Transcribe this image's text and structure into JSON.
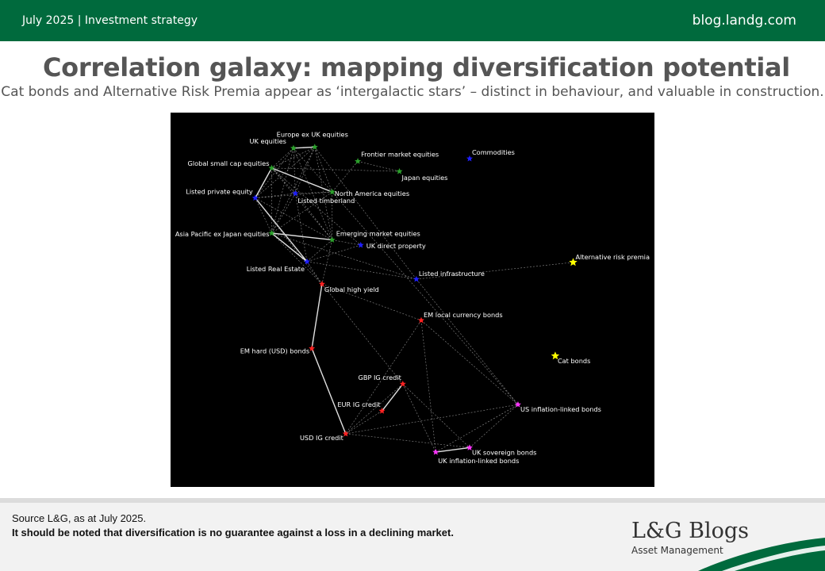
{
  "header": {
    "date_section": "July 2025 | Investment strategy",
    "site": "blog.landg.com"
  },
  "title": "Correlation galaxy: mapping diversification potential",
  "subtitle": "Cat bonds and Alternative Risk Premia appear as ‘intergalactic stars’ – distinct in behaviour, and valuable in construction.",
  "footer": {
    "source": "Source L&G, as at July 2025.",
    "disclaimer": "It should be noted that diversification is no guarantee against a loss in a declining market.",
    "logo_main": "L&G Blogs",
    "logo_sub": "Asset Management"
  },
  "colors": {
    "brand_green": "#006a3d",
    "equities": "#2ca02c",
    "real_assets": "#1f1fff",
    "credit": "#ff2222",
    "govt_bonds": "#ff33ff",
    "alternatives": "#ffff00",
    "strong_link": "#e0e0e0",
    "weak_link": "#bbbbbb"
  },
  "chart_data": {
    "type": "network",
    "title": "",
    "background": "black",
    "nodes": [
      {
        "id": "europe_ex_uk_eq",
        "label": "Europe ex UK equities",
        "group": "equities",
        "x": 0.298,
        "y": 0.092
      },
      {
        "id": "uk_eq",
        "label": "UK equities",
        "group": "equities",
        "x": 0.254,
        "y": 0.095
      },
      {
        "id": "frontier_eq",
        "label": "Frontier market equities",
        "group": "equities",
        "x": 0.387,
        "y": 0.13
      },
      {
        "id": "commodities",
        "label": "Commodities",
        "group": "real_assets",
        "x": 0.618,
        "y": 0.123
      },
      {
        "id": "global_small_cap",
        "label": "Global small cap equities",
        "group": "equities",
        "x": 0.209,
        "y": 0.148
      },
      {
        "id": "japan_eq",
        "label": "Japan equities",
        "group": "equities",
        "x": 0.473,
        "y": 0.157
      },
      {
        "id": "listed_private_eq",
        "label": "Listed private equity",
        "group": "real_assets",
        "x": 0.175,
        "y": 0.228
      },
      {
        "id": "listed_timberland",
        "label": "Listed timberland",
        "group": "real_assets",
        "x": 0.258,
        "y": 0.216
      },
      {
        "id": "north_america_eq",
        "label": "North America equities",
        "group": "equities",
        "x": 0.334,
        "y": 0.212
      },
      {
        "id": "apac_ex_japan_eq",
        "label": "Asia Pacific ex Japan equities",
        "group": "equities",
        "x": 0.209,
        "y": 0.322
      },
      {
        "id": "em_eq",
        "label": "Emerging market equities",
        "group": "equities",
        "x": 0.334,
        "y": 0.34
      },
      {
        "id": "uk_direct_property",
        "label": "UK direct property",
        "group": "real_assets",
        "x": 0.393,
        "y": 0.354
      },
      {
        "id": "listed_real_estate",
        "label": "Listed Real Estate",
        "group": "real_assets",
        "x": 0.282,
        "y": 0.398
      },
      {
        "id": "alt_risk_premia",
        "label": "Alternative risk premia",
        "group": "alternatives",
        "x": 0.832,
        "y": 0.4
      },
      {
        "id": "listed_infra",
        "label": "Listed infrastructure",
        "group": "real_assets",
        "x": 0.508,
        "y": 0.445
      },
      {
        "id": "global_hy",
        "label": "Global high yield",
        "group": "credit",
        "x": 0.313,
        "y": 0.458
      },
      {
        "id": "em_local_bonds",
        "label": "EM local currency bonds",
        "group": "credit",
        "x": 0.518,
        "y": 0.555
      },
      {
        "id": "em_hard_bonds",
        "label": "EM hard (USD) bonds",
        "group": "credit",
        "x": 0.292,
        "y": 0.63
      },
      {
        "id": "cat_bonds",
        "label": "Cat bonds",
        "group": "alternatives",
        "x": 0.795,
        "y": 0.65
      },
      {
        "id": "gbp_ig",
        "label": "GBP IG credit",
        "group": "credit",
        "x": 0.48,
        "y": 0.725
      },
      {
        "id": "eur_ig",
        "label": "EUR IG credit",
        "group": "credit",
        "x": 0.437,
        "y": 0.797
      },
      {
        "id": "usd_ig",
        "label": "USD IG credit",
        "group": "credit",
        "x": 0.362,
        "y": 0.858
      },
      {
        "id": "us_linkers",
        "label": "US inflation-linked bonds",
        "group": "govt_bonds",
        "x": 0.718,
        "y": 0.78
      },
      {
        "id": "uk_sovereign",
        "label": "UK sovereign bonds",
        "group": "govt_bonds",
        "x": 0.618,
        "y": 0.895
      },
      {
        "id": "uk_linkers",
        "label": "UK inflation-linked bonds",
        "group": "govt_bonds",
        "x": 0.548,
        "y": 0.907
      }
    ],
    "links": [
      {
        "source": "uk_eq",
        "target": "europe_ex_uk_eq",
        "strength": "strong"
      },
      {
        "source": "global_small_cap",
        "target": "north_america_eq",
        "strength": "strong"
      },
      {
        "source": "global_small_cap",
        "target": "listed_private_eq",
        "strength": "strong"
      },
      {
        "source": "apac_ex_japan_eq",
        "target": "em_eq",
        "strength": "strong"
      },
      {
        "source": "listed_real_estate",
        "target": "apac_ex_japan_eq",
        "strength": "strong"
      },
      {
        "source": "global_hy",
        "target": "em_hard_bonds",
        "strength": "strong"
      },
      {
        "source": "em_hard_bonds",
        "target": "usd_ig",
        "strength": "strong"
      },
      {
        "source": "gbp_ig",
        "target": "eur_ig",
        "strength": "strong"
      },
      {
        "source": "uk_linkers",
        "target": "uk_sovereign",
        "strength": "strong"
      },
      {
        "source": "listed_private_eq",
        "target": "listed_real_estate",
        "strength": "strong"
      },
      {
        "source": "uk_eq",
        "target": "global_small_cap",
        "strength": "weak"
      },
      {
        "source": "uk_eq",
        "target": "listed_private_eq",
        "strength": "weak"
      },
      {
        "source": "uk_eq",
        "target": "north_america_eq",
        "strength": "weak"
      },
      {
        "source": "uk_eq",
        "target": "listed_timberland",
        "strength": "weak"
      },
      {
        "source": "uk_eq",
        "target": "apac_ex_japan_eq",
        "strength": "weak"
      },
      {
        "source": "uk_eq",
        "target": "em_eq",
        "strength": "weak"
      },
      {
        "source": "europe_ex_uk_eq",
        "target": "global_small_cap",
        "strength": "weak"
      },
      {
        "source": "europe_ex_uk_eq",
        "target": "north_america_eq",
        "strength": "weak"
      },
      {
        "source": "europe_ex_uk_eq",
        "target": "listed_private_eq",
        "strength": "weak"
      },
      {
        "source": "europe_ex_uk_eq",
        "target": "listed_timberland",
        "strength": "weak"
      },
      {
        "source": "europe_ex_uk_eq",
        "target": "em_eq",
        "strength": "weak"
      },
      {
        "source": "europe_ex_uk_eq",
        "target": "apac_ex_japan_eq",
        "strength": "weak"
      },
      {
        "source": "europe_ex_uk_eq",
        "target": "listed_infra",
        "strength": "weak"
      },
      {
        "source": "frontier_eq",
        "target": "japan_eq",
        "strength": "weak"
      },
      {
        "source": "frontier_eq",
        "target": "north_america_eq",
        "strength": "weak"
      },
      {
        "source": "global_small_cap",
        "target": "japan_eq",
        "strength": "weak"
      },
      {
        "source": "global_small_cap",
        "target": "listed_timberland",
        "strength": "weak"
      },
      {
        "source": "global_small_cap",
        "target": "apac_ex_japan_eq",
        "strength": "weak"
      },
      {
        "source": "global_small_cap",
        "target": "em_eq",
        "strength": "weak"
      },
      {
        "source": "global_small_cap",
        "target": "uk_direct_property",
        "strength": "weak"
      },
      {
        "source": "listed_private_eq",
        "target": "north_america_eq",
        "strength": "weak"
      },
      {
        "source": "listed_private_eq",
        "target": "listed_timberland",
        "strength": "weak"
      },
      {
        "source": "listed_private_eq",
        "target": "em_eq",
        "strength": "weak"
      },
      {
        "source": "listed_private_eq",
        "target": "apac_ex_japan_eq",
        "strength": "weak"
      },
      {
        "source": "listed_private_eq",
        "target": "global_hy",
        "strength": "weak"
      },
      {
        "source": "listed_timberland",
        "target": "north_america_eq",
        "strength": "weak"
      },
      {
        "source": "listed_timberland",
        "target": "apac_ex_japan_eq",
        "strength": "weak"
      },
      {
        "source": "listed_timberland",
        "target": "em_eq",
        "strength": "weak"
      },
      {
        "source": "listed_timberland",
        "target": "listed_real_estate",
        "strength": "weak"
      },
      {
        "source": "north_america_eq",
        "target": "apac_ex_japan_eq",
        "strength": "weak"
      },
      {
        "source": "north_america_eq",
        "target": "em_eq",
        "strength": "weak"
      },
      {
        "source": "north_america_eq",
        "target": "us_linkers",
        "strength": "weak"
      },
      {
        "source": "apac_ex_japan_eq",
        "target": "global_hy",
        "strength": "weak"
      },
      {
        "source": "apac_ex_japan_eq",
        "target": "listed_infra",
        "strength": "weak"
      },
      {
        "source": "em_eq",
        "target": "uk_direct_property",
        "strength": "weak"
      },
      {
        "source": "em_eq",
        "target": "listed_real_estate",
        "strength": "weak"
      },
      {
        "source": "em_eq",
        "target": "global_hy",
        "strength": "weak"
      },
      {
        "source": "uk_direct_property",
        "target": "listed_real_estate",
        "strength": "weak"
      },
      {
        "source": "listed_real_estate",
        "target": "global_hy",
        "strength": "weak"
      },
      {
        "source": "listed_real_estate",
        "target": "listed_infra",
        "strength": "weak"
      },
      {
        "source": "listed_infra",
        "target": "alt_risk_premia",
        "strength": "weak"
      },
      {
        "source": "listed_infra",
        "target": "us_linkers",
        "strength": "weak"
      },
      {
        "source": "global_hy",
        "target": "em_local_bonds",
        "strength": "weak"
      },
      {
        "source": "global_hy",
        "target": "gbp_ig",
        "strength": "weak"
      },
      {
        "source": "em_local_bonds",
        "target": "us_linkers",
        "strength": "weak"
      },
      {
        "source": "em_local_bonds",
        "target": "usd_ig",
        "strength": "weak"
      },
      {
        "source": "em_local_bonds",
        "target": "uk_linkers",
        "strength": "weak"
      },
      {
        "source": "gbp_ig",
        "target": "usd_ig",
        "strength": "weak"
      },
      {
        "source": "gbp_ig",
        "target": "uk_linkers",
        "strength": "weak"
      },
      {
        "source": "gbp_ig",
        "target": "uk_sovereign",
        "strength": "weak"
      },
      {
        "source": "eur_ig",
        "target": "usd_ig",
        "strength": "weak"
      },
      {
        "source": "usd_ig",
        "target": "uk_sovereign",
        "strength": "weak"
      },
      {
        "source": "uk_linkers",
        "target": "us_linkers",
        "strength": "weak"
      },
      {
        "source": "uk_sovereign",
        "target": "us_linkers",
        "strength": "weak"
      },
      {
        "source": "usd_ig",
        "target": "us_linkers",
        "strength": "weak"
      }
    ]
  }
}
